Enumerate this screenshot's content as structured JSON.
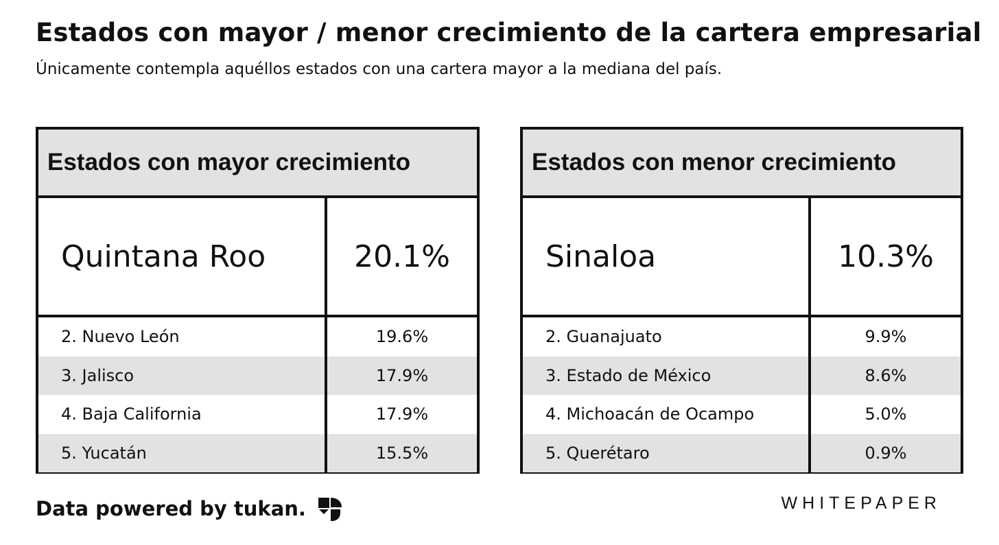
{
  "header": {
    "title": "Estados con mayor / menor crecimiento de la cartera empresarial",
    "subtitle": "Únicamente contempla aquéllos estados con una cartera mayor a la mediana del país."
  },
  "chart_data": {
    "type": "table",
    "tables": [
      {
        "title": "Estados con mayor crecimiento",
        "top": {
          "state": "Quintana Roo",
          "value": "20.1%"
        },
        "rows": [
          {
            "state": "2. Nuevo León",
            "value": "19.6%"
          },
          {
            "state": "3. Jalisco",
            "value": "17.9%"
          },
          {
            "state": "4. Baja California",
            "value": "17.9%"
          },
          {
            "state": "5. Yucatán",
            "value": "15.5%"
          }
        ]
      },
      {
        "title": "Estados con menor crecimiento",
        "top": {
          "state": "Sinaloa",
          "value": "10.3%"
        },
        "rows": [
          {
            "state": "2. Guanajuato",
            "value": "9.9%"
          },
          {
            "state": "3. Estado de México",
            "value": "8.6%"
          },
          {
            "state": "4. Michoacán de Ocampo",
            "value": "5.0%"
          },
          {
            "state": "5. Querétaro",
            "value": "0.9%"
          }
        ]
      }
    ]
  },
  "footer": {
    "credit": "Data powered by tukan.",
    "logo_icon": "tukan-logo-icon",
    "brand": "WHITEPAPER"
  }
}
